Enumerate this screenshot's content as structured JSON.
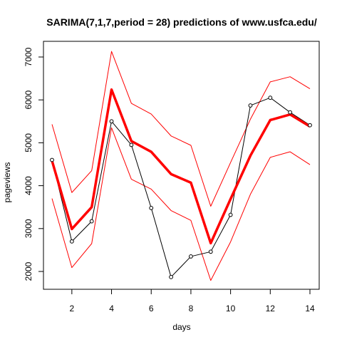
{
  "chart_data": {
    "type": "line",
    "title": "SARIMA(7,1,7,period = 28) predictions of www.usfca.edu/",
    "xlabel": "days",
    "ylabel": "pageviews",
    "xlim": [
      1,
      14
    ],
    "ylim": [
      1800,
      7100
    ],
    "xticks": [
      2,
      4,
      6,
      8,
      10,
      12,
      14
    ],
    "yticks": [
      2000,
      3000,
      4000,
      5000,
      6000,
      7000
    ],
    "grid": false,
    "x": [
      1,
      2,
      3,
      4,
      5,
      6,
      7,
      8,
      9,
      10,
      11,
      12,
      13,
      14
    ],
    "series": [
      {
        "role": "actual",
        "color": "#000000",
        "markers": "open-circle",
        "values": [
          4600,
          2700,
          3170,
          5500,
          4950,
          3480,
          1870,
          2350,
          2460,
          3320,
          5870,
          6050,
          5710,
          5410
        ]
      },
      {
        "role": "prediction",
        "color": "#ff0000",
        "values": [
          4580,
          2990,
          3500,
          6240,
          5040,
          4790,
          4270,
          4070,
          2660,
          3690,
          4700,
          5530,
          5660,
          5380
        ]
      },
      {
        "role": "upper-bound",
        "color": "#ff0000",
        "values": [
          5430,
          3840,
          4350,
          7130,
          5920,
          5670,
          5160,
          4940,
          3520,
          4540,
          5550,
          6420,
          6540,
          6260
        ]
      },
      {
        "role": "lower-bound",
        "color": "#ff0000",
        "values": [
          3700,
          2090,
          2650,
          5350,
          4150,
          3920,
          3420,
          3190,
          1790,
          2690,
          3800,
          4660,
          4790,
          4490
        ]
      }
    ]
  }
}
